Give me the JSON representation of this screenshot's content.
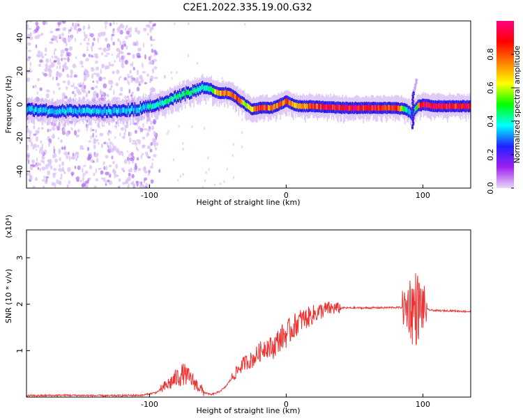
{
  "title": "C2E1.2022.335.19.00.G32",
  "chart_data": [
    {
      "type": "heatmap",
      "xlabel": "Height of straight line (km)",
      "ylabel": "Frequency (Hz)",
      "xlim": [
        -190,
        135
      ],
      "ylim": [
        -50,
        50
      ],
      "x_ticks": [
        -100,
        0,
        100
      ],
      "y_ticks": [
        -40,
        -20,
        0,
        20,
        40
      ],
      "colorbar": {
        "label": "Normalized spectral amplitude",
        "range": [
          0,
          1
        ],
        "ticks": [
          "0.0",
          "0.2",
          "0.4",
          "0.6",
          "0.8"
        ],
        "colormap": [
          "#e8d8f8",
          "#a020f0",
          "#2020ff",
          "#00ffff",
          "#00ff00",
          "#ffff00",
          "#ff8000",
          "#ff0000",
          "#ff0080"
        ]
      },
      "ridge": {
        "x": [
          -190,
          -170,
          -150,
          -130,
          -110,
          -95,
          -85,
          -75,
          -65,
          -60,
          -55,
          -50,
          -45,
          -40,
          -35,
          -30,
          -25,
          -20,
          -15,
          -10,
          -5,
          0,
          5,
          10,
          20,
          40,
          60,
          80,
          88,
          92,
          96,
          100,
          110,
          120,
          135
        ],
        "freq": [
          -3,
          -4,
          -4,
          -4,
          -3,
          0,
          3,
          6,
          9,
          10,
          9,
          7,
          7,
          6,
          3,
          0,
          -3,
          -2,
          -2,
          -2,
          0,
          2,
          0,
          -1,
          -1,
          -2,
          -2,
          -2,
          -3,
          -6,
          -1,
          0,
          -1,
          -1,
          -1
        ],
        "amplitude": [
          0.35,
          0.35,
          0.35,
          0.35,
          0.35,
          0.4,
          0.45,
          0.45,
          0.4,
          0.4,
          0.45,
          0.7,
          0.75,
          0.8,
          0.75,
          0.6,
          0.65,
          0.9,
          0.85,
          0.7,
          0.75,
          0.8,
          0.75,
          0.7,
          0.85,
          0.9,
          0.9,
          0.85,
          0.35,
          0.3,
          0.6,
          0.95,
          0.9,
          0.9,
          0.9
        ]
      }
    },
    {
      "type": "line",
      "xlabel": "Height of straight line (km)",
      "ylabel": "SNR (10 * v/v)",
      "yscale_label": "(x10⁴)",
      "xlim": [
        -190,
        135
      ],
      "ylim": [
        0,
        3.6
      ],
      "x_ticks": [
        -100,
        0,
        100
      ],
      "y_ticks": [
        1,
        2,
        3
      ],
      "color": "#ee3333",
      "series": [
        {
          "x": [
            -190,
            -160,
            -130,
            -105,
            -95,
            -90,
            -85,
            -80,
            -75,
            -70,
            -65,
            -60,
            -55,
            -50,
            -45,
            -40,
            -35,
            -30,
            -25,
            -20,
            -15,
            -10,
            -5,
            0,
            5,
            10,
            15,
            20,
            25,
            30,
            40,
            60,
            80,
            85,
            88,
            90,
            92,
            94,
            96,
            98,
            100,
            102,
            104,
            110,
            120,
            135
          ],
          "y": [
            0.03,
            0.04,
            0.03,
            0.04,
            0.1,
            0.2,
            0.3,
            0.42,
            0.5,
            0.4,
            0.25,
            0.1,
            0.05,
            0.1,
            0.2,
            0.4,
            0.6,
            0.75,
            0.8,
            0.95,
            1.1,
            1.05,
            1.25,
            1.35,
            1.5,
            1.65,
            1.7,
            1.78,
            1.85,
            1.9,
            1.92,
            1.92,
            1.93,
            1.93,
            1.9,
            2.0,
            1.9,
            1.9,
            1.95,
            1.9,
            1.95,
            1.9,
            1.88,
            1.86,
            1.86,
            1.84
          ]
        }
      ],
      "noise_regions": [
        {
          "x": [
            -92,
            -60
          ],
          "amp": 0.25
        },
        {
          "x": [
            -40,
            40
          ],
          "amp": 0.3
        },
        {
          "x": [
            85,
            103
          ],
          "amp": 0.9
        }
      ]
    }
  ]
}
